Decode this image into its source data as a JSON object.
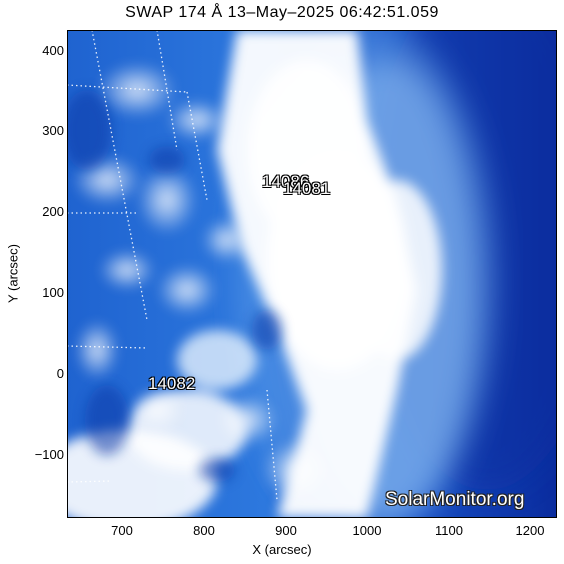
{
  "title": "SWAP 174 Å 13–May–2025 06:42:51.059",
  "axes": {
    "xlabel": "X (arcsec)",
    "ylabel": "Y (arcsec)",
    "xlim": [
      632,
      1232
    ],
    "ylim": [
      -180,
      425
    ],
    "xticks": [
      "700",
      "800",
      "900",
      "1000",
      "1100",
      "1200"
    ],
    "yticks": [
      "400",
      "300",
      "200",
      "100",
      "0",
      "−100"
    ]
  },
  "active_regions": [
    {
      "label": "14086",
      "x": 905,
      "y": 232
    },
    {
      "label": "14081",
      "x": 925,
      "y": 222
    },
    {
      "label": "14082",
      "x": 783,
      "y": -15
    }
  ],
  "watermark": "SolarMonitor.org",
  "colors": {
    "deep_blue": "#0a2d9e",
    "mid_blue": "#1f6cd8",
    "bright": "#ffffff"
  }
}
